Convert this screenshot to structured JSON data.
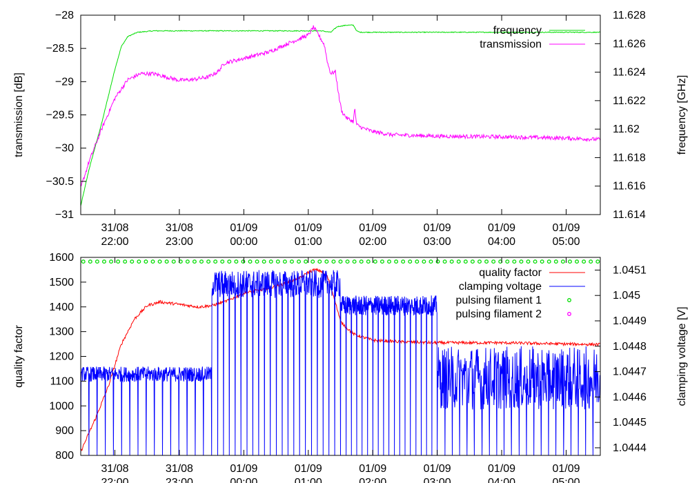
{
  "chart_data": [
    {
      "type": "line",
      "xlabels": [
        "31/08\n22:00",
        "31/08\n23:00",
        "01/09\n00:00",
        "01/09\n01:00",
        "01/09\n02:00",
        "01/09\n03:00",
        "01/09\n04:00",
        "01/09\n05:00"
      ],
      "xlim_hours": [
        21.47,
        29.53
      ],
      "xtick_hours": [
        22,
        23,
        24,
        25,
        26,
        27,
        28,
        29
      ],
      "ylabel_left": "transmission [dB]",
      "ylabel_right": "frequency [GHz]",
      "ylim_left": [
        -31,
        -28
      ],
      "ylim_right": [
        11.614,
        11.628
      ],
      "yticks_left": [
        "-28",
        "-28.5",
        "-29",
        "-29.5",
        "-30",
        "-30.5",
        "-31"
      ],
      "yticks_left_values": [
        -28,
        -28.5,
        -29,
        -29.5,
        -30,
        -30.5,
        -31
      ],
      "yticks_right": [
        "11.628",
        "11.626",
        "11.624",
        "11.622",
        "11.62",
        "11.618",
        "11.616",
        "11.614"
      ],
      "yticks_right_values": [
        11.628,
        11.626,
        11.624,
        11.622,
        11.62,
        11.618,
        11.616,
        11.614
      ],
      "legend_position": "top-right",
      "series": [
        {
          "name": "frequency",
          "axis": "right",
          "color": "#00dd00",
          "x": [
            21.47,
            21.6,
            21.8,
            22.0,
            22.1,
            22.2,
            22.35,
            22.6,
            23.0,
            23.5,
            24.0,
            24.5,
            25.0,
            25.2,
            25.35,
            25.45,
            25.6,
            25.7,
            25.75,
            25.8,
            26.0,
            27.0,
            28.0,
            29.0,
            29.53
          ],
          "y": [
            11.6146,
            11.6172,
            11.6205,
            11.6242,
            11.6258,
            11.6265,
            11.6268,
            11.6269,
            11.6269,
            11.6269,
            11.6269,
            11.6269,
            11.6269,
            11.6269,
            11.6268,
            11.6272,
            11.6273,
            11.6273,
            11.6269,
            11.6268,
            11.6268,
            11.6268,
            11.6268,
            11.6268,
            11.6268
          ],
          "noise": 3e-05
        },
        {
          "name": "transmission",
          "axis": "left",
          "color": "#ff00ff",
          "x": [
            21.47,
            21.6,
            21.8,
            22.0,
            22.2,
            22.4,
            22.6,
            22.8,
            23.0,
            23.2,
            23.45,
            23.6,
            23.7,
            24.0,
            24.4,
            24.7,
            25.0,
            25.08,
            25.15,
            25.25,
            25.3,
            25.35,
            25.42,
            25.48,
            25.52,
            25.6,
            25.7,
            25.72,
            25.75,
            25.85,
            26.0,
            26.3,
            27.0,
            28.0,
            29.0,
            29.53
          ],
          "y": [
            -30.6,
            -30.2,
            -29.7,
            -29.25,
            -28.97,
            -28.88,
            -28.88,
            -28.93,
            -28.98,
            -28.97,
            -28.93,
            -28.85,
            -28.72,
            -28.65,
            -28.55,
            -28.42,
            -28.3,
            -28.18,
            -28.28,
            -28.45,
            -28.72,
            -28.88,
            -28.85,
            -29.25,
            -29.45,
            -29.55,
            -29.6,
            -29.4,
            -29.65,
            -29.7,
            -29.75,
            -29.8,
            -29.82,
            -29.83,
            -29.85,
            -29.87
          ],
          "noise": 0.03
        }
      ]
    },
    {
      "type": "line",
      "xlabels": [
        "31/08\n22:00",
        "31/08\n23:00",
        "01/09\n00:00",
        "01/09\n01:00",
        "01/09\n02:00",
        "01/09\n03:00",
        "01/09\n04:00",
        "01/09\n05:00"
      ],
      "xlim_hours": [
        21.47,
        29.53
      ],
      "xtick_hours": [
        22,
        23,
        24,
        25,
        26,
        27,
        28,
        29
      ],
      "ylabel_left": "quality factor",
      "ylabel_right": "clamping voltage [V]",
      "ylim_left": [
        800,
        1600
      ],
      "ylim_right": [
        1.04437,
        1.04515
      ],
      "yticks_left": [
        "1600",
        "1500",
        "1400",
        "1300",
        "1200",
        "1100",
        "1000",
        "900",
        "800"
      ],
      "yticks_left_values": [
        1600,
        1500,
        1400,
        1300,
        1200,
        1100,
        1000,
        900,
        800
      ],
      "yticks_right": [
        "1.0451",
        "1.045",
        "1.0449",
        "1.0448",
        "1.0447",
        "1.0446",
        "1.0445",
        "1.0444"
      ],
      "yticks_right_values": [
        1.0451,
        1.045,
        1.0449,
        1.0448,
        1.0447,
        1.0446,
        1.0445,
        1.0444
      ],
      "legend_position": "top-right",
      "series": [
        {
          "name": "quality factor",
          "axis": "left",
          "color": "#ff0000",
          "x": [
            21.47,
            21.7,
            21.9,
            22.1,
            22.3,
            22.5,
            22.7,
            23.0,
            23.3,
            23.5,
            23.7,
            24.0,
            24.3,
            24.6,
            24.9,
            25.0,
            25.1,
            25.2,
            25.3,
            25.4,
            25.5,
            25.7,
            26.0,
            26.5,
            27.0,
            28.0,
            29.0,
            29.53
          ],
          "y": [
            815,
            950,
            1080,
            1250,
            1350,
            1405,
            1420,
            1410,
            1400,
            1405,
            1420,
            1455,
            1470,
            1490,
            1520,
            1540,
            1550,
            1545,
            1520,
            1440,
            1340,
            1290,
            1265,
            1258,
            1255,
            1255,
            1250,
            1248
          ],
          "noise": 6
        },
        {
          "name": "clamping voltage",
          "axis": "right",
          "color": "#0000ff",
          "segments": [
            {
              "from": 21.47,
              "to": 23.5,
              "low": 1.04466,
              "high": 1.04472,
              "dip_count": 16,
              "dip_low": 1.04437
            },
            {
              "from": 23.5,
              "to": 25.5,
              "low": 1.04499,
              "high": 1.0451,
              "dip_count": 22,
              "dip_low": 1.04437
            },
            {
              "from": 25.5,
              "to": 27.0,
              "low": 1.04492,
              "high": 1.045,
              "dip_count": 18,
              "dip_low": 1.04437
            },
            {
              "from": 27.0,
              "to": 29.53,
              "low": 1.04455,
              "high": 1.0448,
              "dip_count": 22,
              "dip_low": 1.04437
            }
          ]
        },
        {
          "name": "pulsing filament 1",
          "axis": "left",
          "marker": "circle",
          "color": "#00dd00",
          "y_value": 1583,
          "count": 75
        },
        {
          "name": "pulsing filament 2",
          "axis": "left",
          "marker": "circle",
          "color": "#ff00ff",
          "count": 0
        }
      ]
    }
  ]
}
